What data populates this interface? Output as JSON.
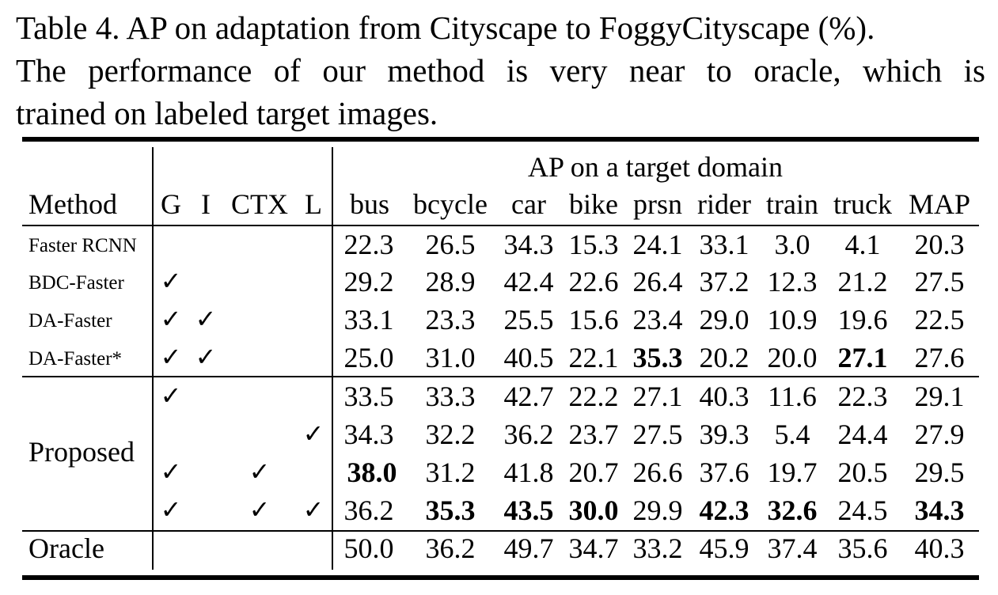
{
  "caption": {
    "line1": "Table 4. AP on adaptation from Cityscape to FoggyCityscape (%).",
    "line2": "The performance of our method is very near to oracle, which is",
    "line3": "trained on labeled target images."
  },
  "table": {
    "group_header": "AP on a target domain",
    "columns": {
      "method": "Method",
      "g": "G",
      "i": "I",
      "ctx": "CTX",
      "l": "L",
      "bus": "bus",
      "bcycle": "bcycle",
      "car": "car",
      "bike": "bike",
      "prsn": "prsn",
      "rider": "rider",
      "train": "train",
      "truck": "truck",
      "map": "MAP"
    },
    "check_mark": "✓",
    "rows": [
      {
        "method": "Faster RCNN",
        "values": [
          "22.3",
          "26.5",
          "34.3",
          "15.3",
          "24.1",
          "33.1",
          "3.0",
          "4.1",
          "20.3"
        ]
      },
      {
        "method": "BDC-Faster",
        "values": [
          "29.2",
          "28.9",
          "42.4",
          "22.6",
          "26.4",
          "37.2",
          "12.3",
          "21.2",
          "27.5"
        ]
      },
      {
        "method": "DA-Faster",
        "values": [
          "33.1",
          "23.3",
          "25.5",
          "15.6",
          "23.4",
          "29.0",
          "10.9",
          "19.6",
          "22.5"
        ]
      },
      {
        "method": "DA-Faster*",
        "values": [
          "25.0",
          "31.0",
          "40.5",
          "22.1",
          "35.3",
          "20.2",
          "20.0",
          "27.1",
          "27.6"
        ]
      },
      {
        "method": "Proposed",
        "values": [
          "33.5",
          "33.3",
          "42.7",
          "22.2",
          "27.1",
          "40.3",
          "11.6",
          "22.3",
          "29.1"
        ]
      },
      {
        "method": "Proposed",
        "values": [
          "34.3",
          "32.2",
          "36.2",
          "23.7",
          "27.5",
          "39.3",
          "5.4",
          "24.4",
          "27.9"
        ]
      },
      {
        "method": "Proposed",
        "values": [
          "38.0",
          "31.2",
          "41.8",
          "20.7",
          "26.6",
          "37.6",
          "19.7",
          "20.5",
          "29.5"
        ]
      },
      {
        "method": "Proposed",
        "values": [
          "36.2",
          "35.3",
          "43.5",
          "30.0",
          "29.9",
          "42.3",
          "32.6",
          "24.5",
          "34.3"
        ]
      },
      {
        "method": "Oracle",
        "values": [
          "50.0",
          "36.2",
          "49.7",
          "34.7",
          "33.2",
          "45.9",
          "37.4",
          "35.6",
          "40.3"
        ]
      }
    ]
  }
}
